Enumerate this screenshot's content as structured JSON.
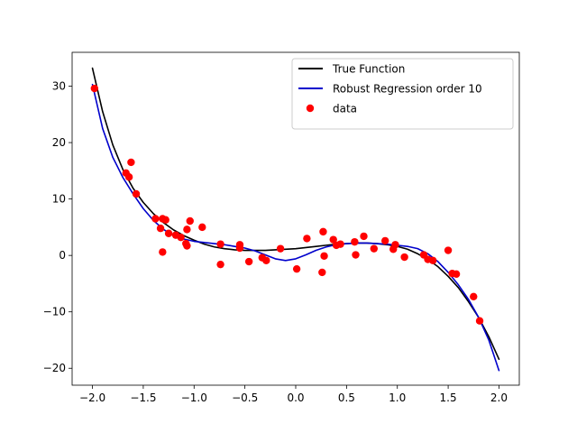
{
  "chart_data": {
    "type": "line",
    "title": "",
    "xlabel": "",
    "ylabel": "",
    "xlim": [
      -2.2,
      2.2
    ],
    "ylim": [
      -23,
      36
    ],
    "x_ticks": [
      -2.0,
      -1.5,
      -1.0,
      -0.5,
      0.0,
      0.5,
      1.0,
      1.5,
      2.0
    ],
    "x_tick_labels": [
      "−2.0",
      "−1.5",
      "−1.0",
      "−0.5",
      "0.0",
      "0.5",
      "1.0",
      "1.5",
      "2.0"
    ],
    "y_ticks": [
      -20,
      -10,
      0,
      10,
      20,
      30
    ],
    "y_tick_labels": [
      "−20",
      "−10",
      "0",
      "10",
      "20",
      "30"
    ],
    "grid": false,
    "legend_placement": "top-right",
    "series": [
      {
        "name": "True Function",
        "kind": "line",
        "color": "#000000",
        "x": [
          -2.0,
          -1.9,
          -1.8,
          -1.7,
          -1.6,
          -1.5,
          -1.4,
          -1.3,
          -1.2,
          -1.1,
          -1.0,
          -0.9,
          -0.8,
          -0.7,
          -0.6,
          -0.5,
          -0.4,
          -0.3,
          -0.2,
          -0.1,
          0.0,
          0.1,
          0.2,
          0.3,
          0.4,
          0.5,
          0.6,
          0.7,
          0.8,
          0.9,
          1.0,
          1.1,
          1.2,
          1.3,
          1.4,
          1.5,
          1.6,
          1.7,
          1.8,
          1.9,
          2.0
        ],
        "y": [
          33.2,
          25.5,
          19.6,
          15.2,
          11.9,
          9.4,
          7.4,
          5.8,
          4.5,
          3.5,
          2.7,
          2.0,
          1.5,
          1.2,
          1.0,
          0.9,
          0.9,
          0.9,
          1.0,
          1.1,
          1.2,
          1.4,
          1.6,
          1.8,
          2.0,
          2.1,
          2.2,
          2.2,
          2.1,
          1.9,
          1.6,
          1.1,
          0.3,
          -0.7,
          -2.0,
          -3.7,
          -5.7,
          -8.2,
          -11.0,
          -14.4,
          -18.4
        ]
      },
      {
        "name": "Robust Regression order 10",
        "kind": "line",
        "color": "#0000cc",
        "x": [
          -2.0,
          -1.9,
          -1.8,
          -1.7,
          -1.6,
          -1.5,
          -1.4,
          -1.3,
          -1.2,
          -1.1,
          -1.0,
          -0.9,
          -0.8,
          -0.7,
          -0.6,
          -0.5,
          -0.4,
          -0.3,
          -0.2,
          -0.1,
          0.0,
          0.1,
          0.2,
          0.3,
          0.4,
          0.5,
          0.6,
          0.7,
          0.8,
          0.9,
          1.0,
          1.1,
          1.2,
          1.3,
          1.4,
          1.5,
          1.6,
          1.7,
          1.8,
          1.9,
          2.0
        ],
        "y": [
          30.3,
          22.5,
          17.4,
          13.8,
          10.9,
          8.3,
          6.2,
          4.6,
          3.5,
          2.9,
          2.5,
          2.3,
          2.1,
          1.9,
          1.6,
          1.3,
          0.8,
          0.1,
          -0.6,
          -0.9,
          -0.6,
          0.1,
          0.9,
          1.5,
          1.9,
          2.1,
          2.2,
          2.2,
          2.1,
          2.0,
          1.8,
          1.6,
          1.2,
          0.3,
          -1.1,
          -3.0,
          -5.2,
          -7.8,
          -11.0,
          -15.0,
          -20.4
        ]
      },
      {
        "name": "data",
        "kind": "scatter",
        "color": "#ff0000",
        "x": [
          -1.98,
          -1.67,
          -1.64,
          -1.62,
          -1.57,
          -1.38,
          -1.33,
          -1.31,
          -1.31,
          -1.28,
          -1.25,
          -1.18,
          -1.13,
          -1.08,
          -1.07,
          -1.07,
          -1.04,
          -0.92,
          -0.74,
          -0.74,
          -0.55,
          -0.55,
          -0.46,
          -0.33,
          -0.29,
          -0.15,
          0.01,
          0.11,
          0.27,
          0.28,
          0.26,
          0.37,
          0.4,
          0.44,
          0.58,
          0.59,
          0.67,
          0.77,
          0.88,
          0.96,
          0.98,
          1.07,
          1.26,
          1.3,
          1.35,
          1.5,
          1.54,
          1.58,
          1.75,
          1.81
        ],
        "y": [
          29.6,
          14.6,
          13.9,
          16.5,
          10.9,
          6.5,
          4.8,
          0.6,
          6.5,
          6.3,
          3.9,
          3.6,
          3.2,
          2.1,
          1.7,
          4.6,
          6.1,
          5.0,
          2.0,
          -1.6,
          1.9,
          1.3,
          -1.1,
          -0.4,
          -0.9,
          1.2,
          -2.4,
          3.0,
          4.2,
          -0.1,
          -3.0,
          2.8,
          1.8,
          2.0,
          2.4,
          0.1,
          3.4,
          1.2,
          2.6,
          1.1,
          1.9,
          -0.3,
          0.1,
          -0.7,
          -0.9,
          0.9,
          -3.2,
          -3.3,
          -7.3,
          -11.6
        ]
      }
    ]
  }
}
